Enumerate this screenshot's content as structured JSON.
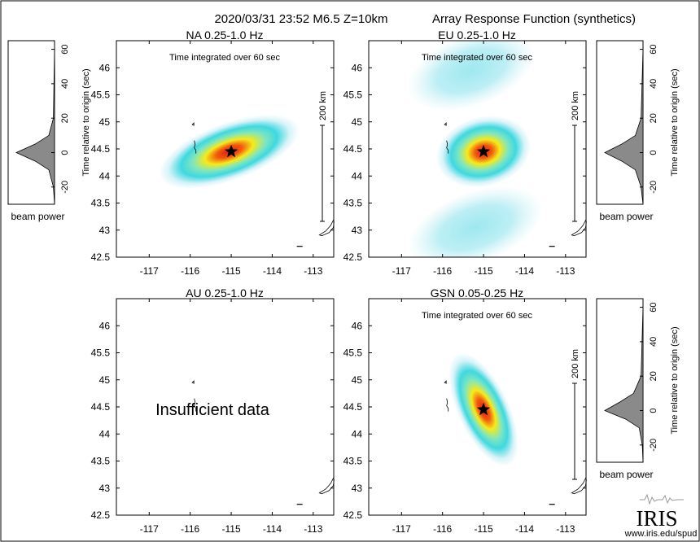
{
  "header": {
    "event_line": "2020/03/31 23:52  M6.5  Z=10km",
    "figure_title": "Array Response Function (synthetics)"
  },
  "common": {
    "time_integrated_label": "Time integrated over 60 sec",
    "scale_label": "200 km",
    "beam_power_label": "beam power",
    "beam_axis_label": "Time relative to origin (sec)",
    "insufficient_label": "Insufficient data",
    "event_marker": "star-icon",
    "lon_ticks": [
      "-117",
      "-116",
      "-115",
      "-114",
      "-113"
    ],
    "lat_ticks": [
      "42.5",
      "43",
      "43.5",
      "44",
      "44.5",
      "45",
      "45.5",
      "46"
    ],
    "beam_ticks": [
      "-20",
      "0",
      "20",
      "40",
      "60"
    ]
  },
  "footer": {
    "logo_text": "IRIS",
    "url": "www.iris.edu/spud"
  },
  "colors": {
    "low": "#d6f3f8",
    "mid": "#3fd8e0",
    "high": "#f6ea1a",
    "peak": "#d81e10",
    "beam_fill": "#8a8a8a"
  },
  "chart_data": [
    {
      "type": "heatmap",
      "title": "NA  0.25-1.0 Hz",
      "subtitle": "Time integrated over 60 sec",
      "xlim": [
        -117.8,
        -112.5
      ],
      "ylim": [
        42.5,
        46.5
      ],
      "x_ticks": [
        -117,
        -116,
        -115,
        -114,
        -113
      ],
      "y_ticks": [
        42.5,
        43,
        43.5,
        44,
        44.5,
        45,
        45.5,
        46
      ],
      "event": {
        "lon": -115.0,
        "lat": 44.45
      },
      "scale_label": "200 km",
      "peak_lon": -115.05,
      "peak_lat": 44.45,
      "blobs": [
        {
          "lon": -115.05,
          "lat": 44.45,
          "sx": 0.95,
          "sy": 0.28,
          "rot": -20,
          "amp": 1.0
        }
      ],
      "beam_power": {
        "time": [
          -30,
          -20,
          -10,
          -5,
          0,
          5,
          10,
          20,
          60
        ],
        "power": [
          0,
          0.03,
          0.15,
          0.5,
          1.0,
          0.5,
          0.15,
          0.03,
          0
        ]
      }
    },
    {
      "type": "heatmap",
      "title": "EU  0.25-1.0 Hz",
      "subtitle": "Time integrated over 60 sec",
      "xlim": [
        -117.8,
        -112.5
      ],
      "ylim": [
        42.5,
        46.5
      ],
      "x_ticks": [
        -117,
        -116,
        -115,
        -114,
        -113
      ],
      "y_ticks": [
        42.5,
        43,
        43.5,
        44,
        44.5,
        45,
        45.5,
        46
      ],
      "event": {
        "lon": -115.0,
        "lat": 44.45
      },
      "scale_label": "200 km",
      "peak_lon": -115.0,
      "peak_lat": 44.45,
      "blobs": [
        {
          "lon": -115.0,
          "lat": 44.45,
          "sx": 0.62,
          "sy": 0.34,
          "rot": -15,
          "amp": 1.0
        },
        {
          "lon": -115.3,
          "lat": 45.95,
          "sx": 0.85,
          "sy": 0.35,
          "rot": -20,
          "amp": 0.32
        },
        {
          "lon": -115.2,
          "lat": 43.05,
          "sx": 0.9,
          "sy": 0.35,
          "rot": -20,
          "amp": 0.3
        }
      ],
      "beam_power": {
        "time": [
          -30,
          -20,
          -10,
          -5,
          0,
          5,
          10,
          20,
          60
        ],
        "power": [
          0,
          0.05,
          0.2,
          0.55,
          1.0,
          0.55,
          0.2,
          0.05,
          0
        ]
      }
    },
    {
      "type": "heatmap",
      "title": "AU  0.25-1.0 Hz",
      "xlim": [
        -117.8,
        -112.5
      ],
      "ylim": [
        42.5,
        46.5
      ],
      "x_ticks": [
        -117,
        -116,
        -115,
        -114,
        -113
      ],
      "y_ticks": [
        42.5,
        43,
        43.5,
        44,
        44.5,
        45,
        45.5,
        46
      ],
      "insufficient_data": true,
      "blobs": []
    },
    {
      "type": "heatmap",
      "title": "GSN  0.05-0.25 Hz",
      "subtitle": "Time integrated over 60 sec",
      "xlim": [
        -117.8,
        -112.5
      ],
      "ylim": [
        42.5,
        46.5
      ],
      "x_ticks": [
        -117,
        -116,
        -115,
        -114,
        -113
      ],
      "y_ticks": [
        42.5,
        43,
        43.5,
        44,
        44.5,
        45,
        45.5,
        46
      ],
      "event": {
        "lon": -115.0,
        "lat": 44.45
      },
      "scale_label": "200 km",
      "peak_lon": -115.0,
      "peak_lat": 44.45,
      "blobs": [
        {
          "lon": -115.0,
          "lat": 44.45,
          "sx": 0.33,
          "sy": 0.6,
          "rot": -25,
          "amp": 1.0
        }
      ],
      "beam_power": {
        "time": [
          -30,
          -20,
          -10,
          -5,
          0,
          5,
          10,
          20,
          60
        ],
        "power": [
          0,
          0.02,
          0.1,
          0.45,
          1.0,
          0.6,
          0.25,
          0.05,
          0
        ]
      }
    }
  ]
}
